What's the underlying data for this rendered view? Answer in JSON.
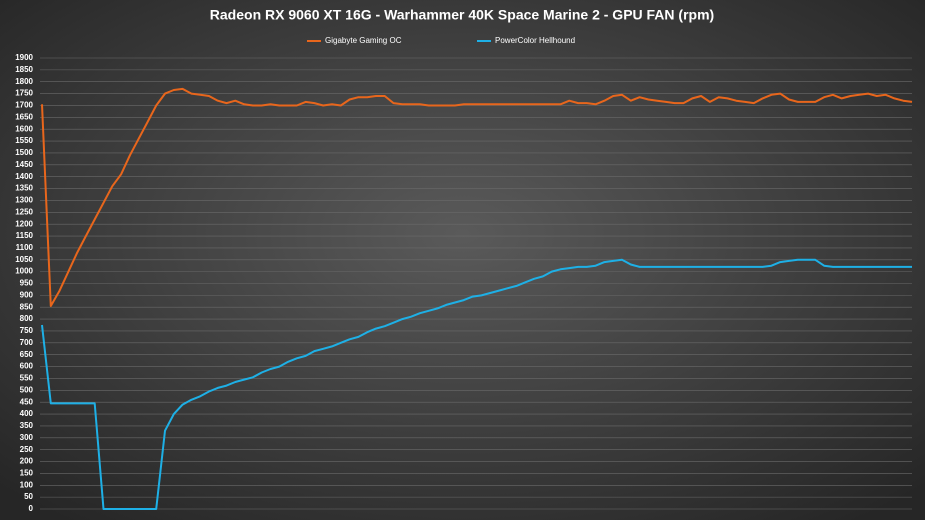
{
  "chart_data": {
    "type": "line",
    "title": "Radeon RX 9060 XT 16G - Warhammer 40K Space Marine 2 - GPU FAN (rpm)",
    "ylim": [
      0,
      1900
    ],
    "yticks": [
      0,
      50,
      100,
      150,
      200,
      250,
      300,
      350,
      400,
      450,
      500,
      550,
      600,
      650,
      700,
      750,
      800,
      850,
      900,
      950,
      1000,
      1050,
      1100,
      1150,
      1200,
      1250,
      1300,
      1350,
      1400,
      1450,
      1500,
      1550,
      1600,
      1650,
      1700,
      1750,
      1800,
      1850,
      1900
    ],
    "grid": true,
    "legend": "top",
    "series": [
      {
        "name": "Gigabyte Gaming OC",
        "color": "#e8661c",
        "values": [
          1705,
          855,
          920,
          1000,
          1080,
          1150,
          1220,
          1290,
          1360,
          1410,
          1490,
          1560,
          1630,
          1700,
          1750,
          1765,
          1770,
          1750,
          1745,
          1740,
          1720,
          1710,
          1720,
          1705,
          1700,
          1700,
          1705,
          1700,
          1700,
          1700,
          1715,
          1710,
          1700,
          1705,
          1700,
          1725,
          1735,
          1735,
          1740,
          1740,
          1710,
          1705,
          1705,
          1705,
          1700,
          1700,
          1700,
          1700,
          1705,
          1705,
          1705,
          1705,
          1705,
          1705,
          1705,
          1705,
          1705,
          1705,
          1705,
          1705,
          1720,
          1710,
          1710,
          1705,
          1720,
          1740,
          1745,
          1720,
          1735,
          1725,
          1720,
          1715,
          1710,
          1710,
          1730,
          1740,
          1715,
          1735,
          1730,
          1720,
          1715,
          1710,
          1730,
          1745,
          1750,
          1725,
          1715,
          1715,
          1715,
          1735,
          1745,
          1730,
          1740,
          1745,
          1750,
          1740,
          1745,
          1730,
          1720,
          1715
        ]
      },
      {
        "name": "PowerColor Hellhound",
        "color": "#1eb0e6",
        "values": [
          775,
          445,
          445,
          445,
          445,
          445,
          445,
          0,
          0,
          0,
          0,
          0,
          0,
          0,
          330,
          400,
          440,
          460,
          475,
          495,
          510,
          520,
          535,
          545,
          555,
          575,
          590,
          600,
          620,
          635,
          645,
          665,
          675,
          685,
          700,
          715,
          725,
          745,
          760,
          770,
          785,
          800,
          810,
          825,
          835,
          845,
          860,
          870,
          880,
          895,
          900,
          910,
          920,
          930,
          940,
          955,
          970,
          980,
          1000,
          1010,
          1015,
          1020,
          1020,
          1025,
          1040,
          1045,
          1050,
          1030,
          1020,
          1020,
          1020,
          1020,
          1020,
          1020,
          1020,
          1020,
          1020,
          1020,
          1020,
          1020,
          1020,
          1020,
          1020,
          1025,
          1040,
          1045,
          1050,
          1050,
          1050,
          1025,
          1020,
          1020,
          1020,
          1020,
          1020,
          1020,
          1020,
          1020,
          1020,
          1020
        ]
      }
    ]
  }
}
